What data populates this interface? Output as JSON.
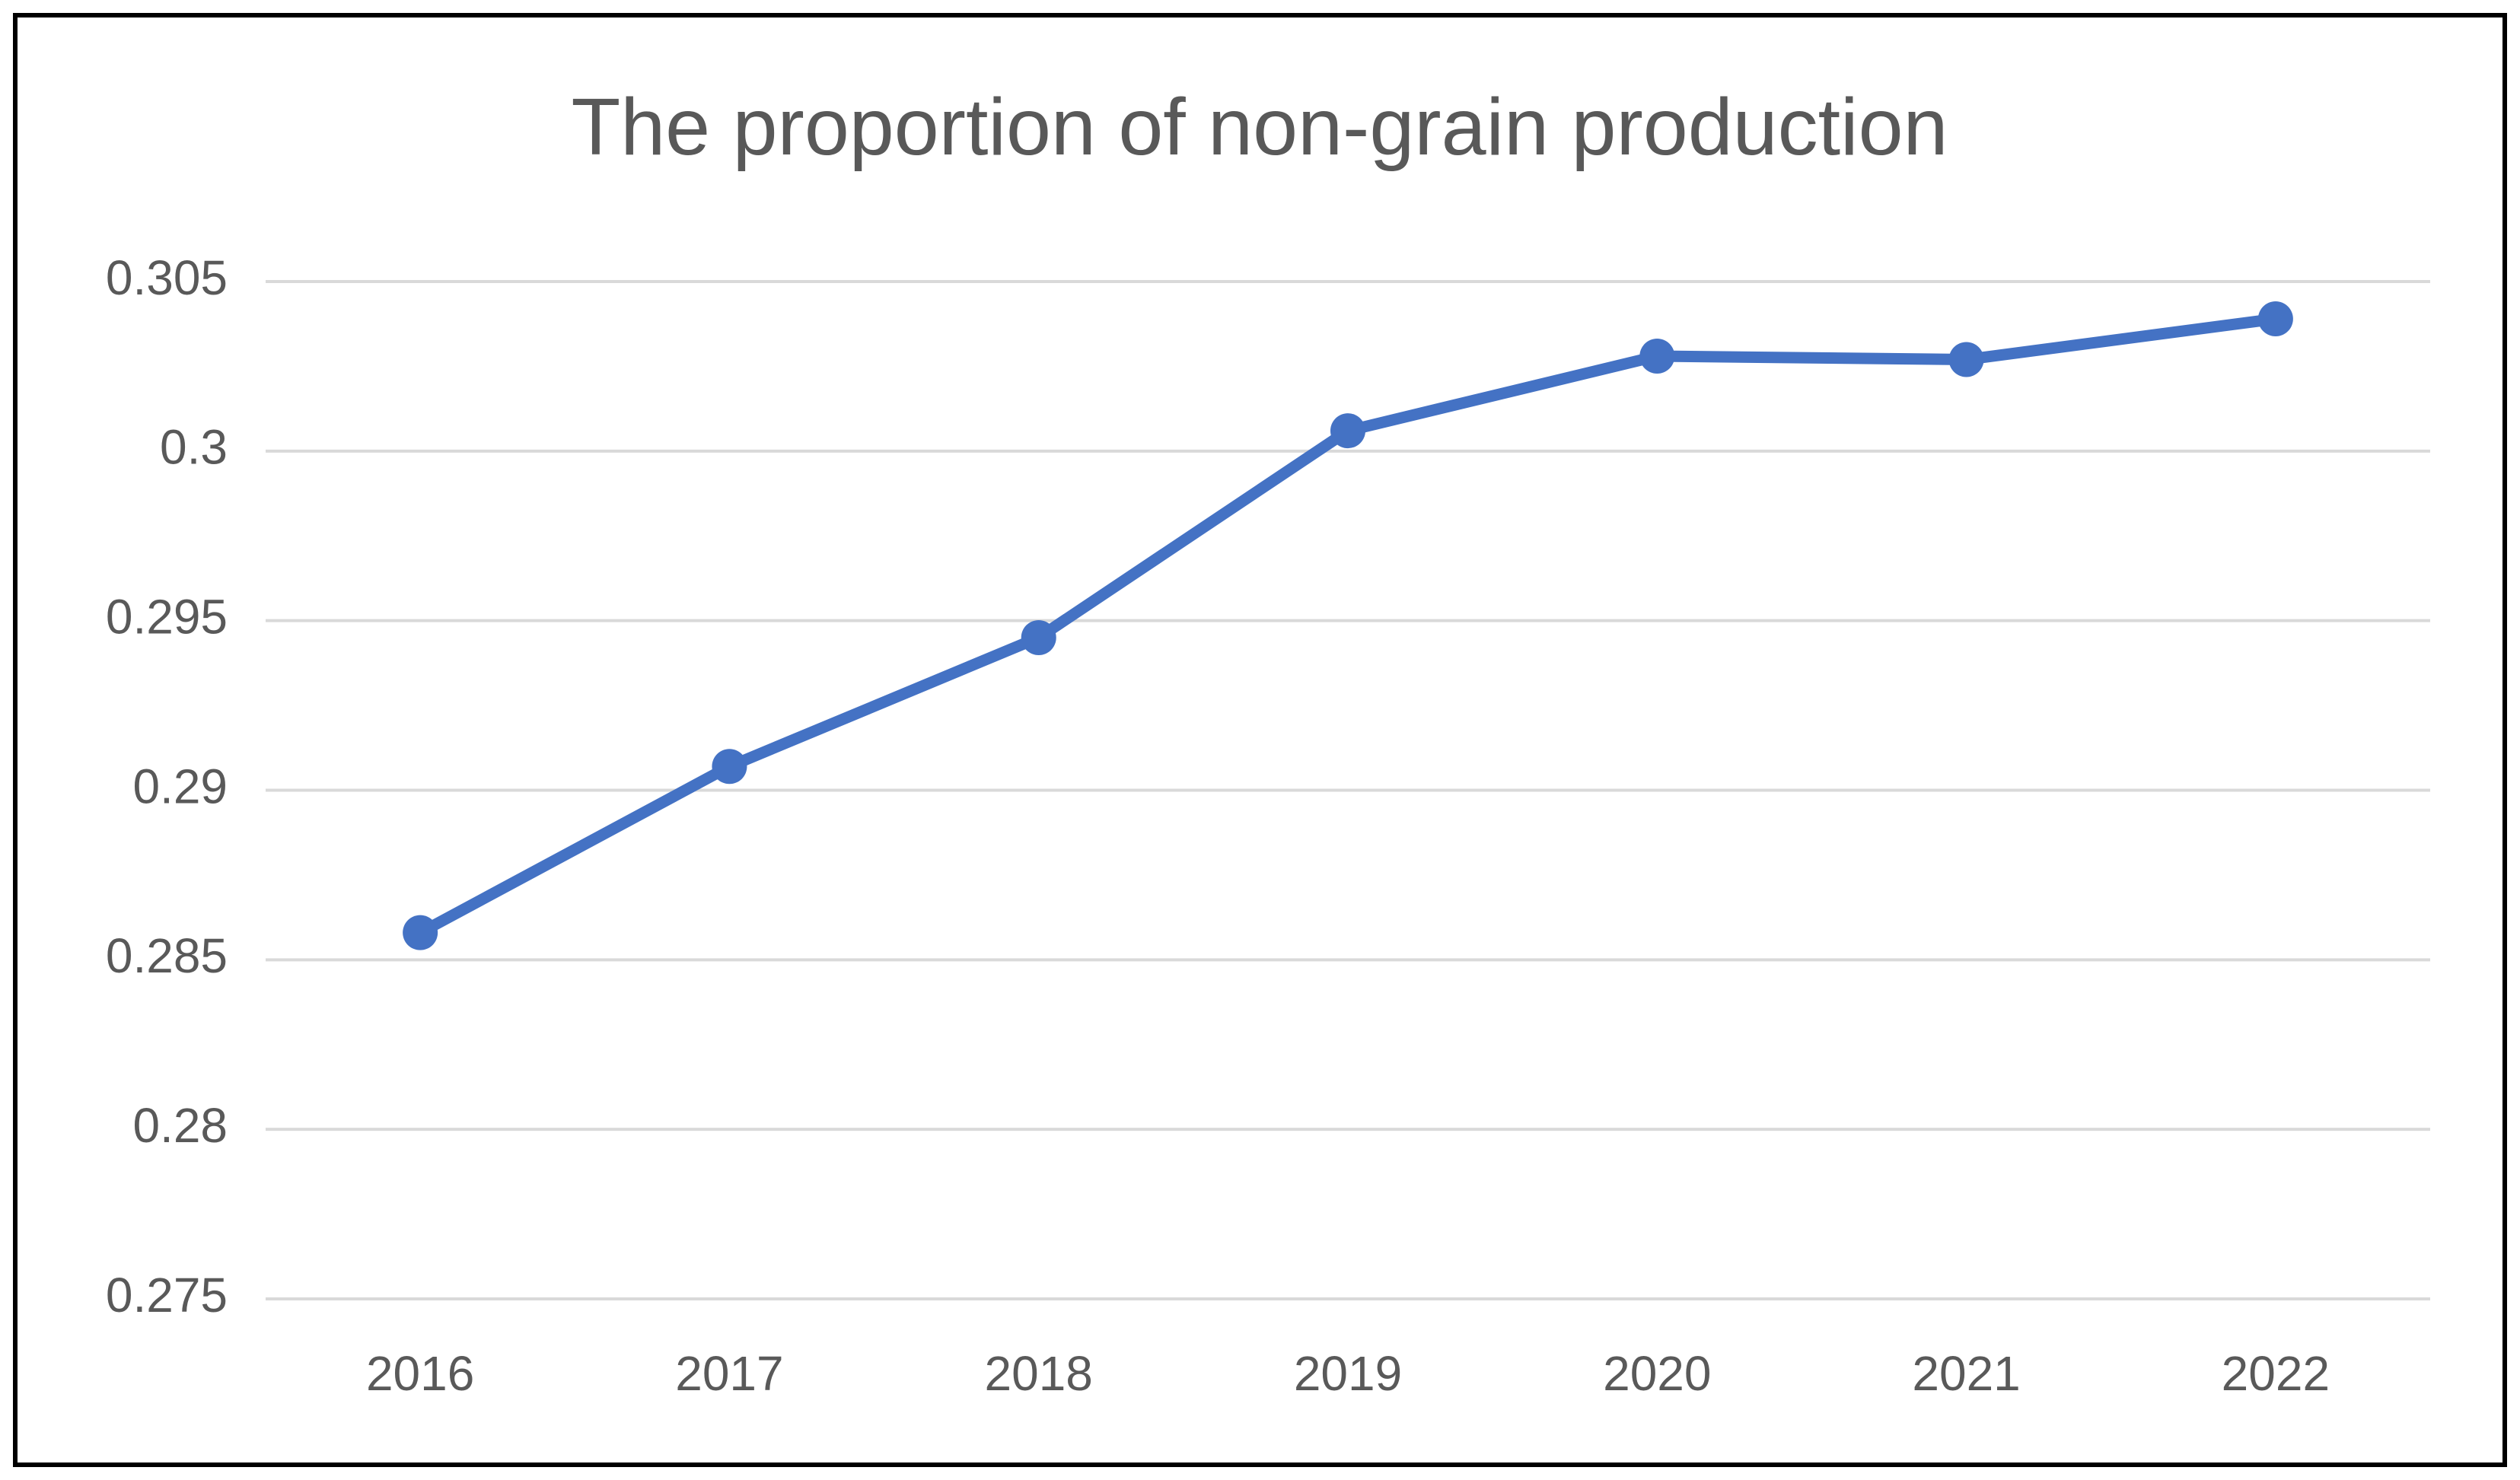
{
  "chart_data": {
    "type": "line",
    "title": "The proportion of non-grain production",
    "categories": [
      "2016",
      "2017",
      "2018",
      "2019",
      "2020",
      "2021",
      "2022"
    ],
    "values": [
      0.2858,
      0.2907,
      0.2945,
      0.3006,
      0.3028,
      0.3027,
      0.3039
    ],
    "color": "#4472c4",
    "ylim": [
      0.275,
      0.305
    ],
    "yticks": [
      0.275,
      0.28,
      0.285,
      0.29,
      0.295,
      0.3,
      0.305
    ],
    "grid": true
  }
}
